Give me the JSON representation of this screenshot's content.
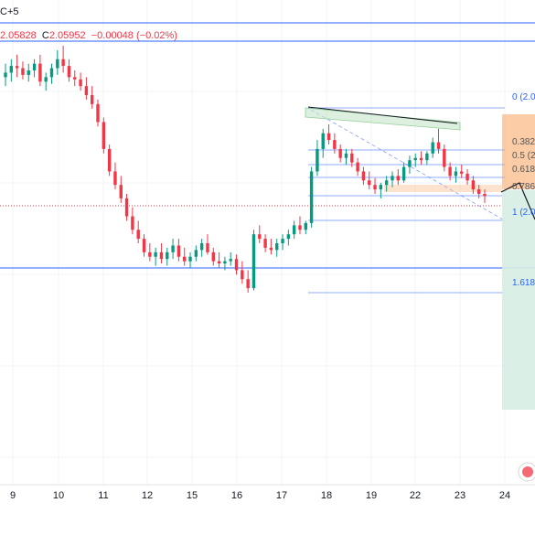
{
  "header": {
    "top_label": "C+5",
    "close_label": "C",
    "low_value": "2.05828",
    "close_value": "2.05952",
    "change_value": "−0.00048 (−0.02%)"
  },
  "fib_labels": [
    "0 (2.0",
    "0.382",
    "0.5 (2",
    "0.618",
    "0.786",
    "1 (2.0",
    "1.618"
  ],
  "chart_data": {
    "type": "candlestick",
    "xlabel": "",
    "ylabel": "",
    "x_ticks": [
      "9",
      "10",
      "11",
      "12",
      "15",
      "16",
      "17",
      "18",
      "19",
      "22",
      "23",
      "24"
    ],
    "colors": {
      "up": "#089981",
      "down": "#f23645",
      "fib_blue": "#2962ff",
      "target": "#f7a35c",
      "stop": "#d6ede3"
    },
    "fib_levels": [
      0,
      0.382,
      0.5,
      0.618,
      0.786,
      1,
      1.618
    ],
    "series": [
      {
        "values": [
          [
            2.105,
            2.108,
            2.103,
            2.106
          ],
          [
            2.106,
            2.109,
            2.104,
            2.1075
          ],
          [
            2.1075,
            2.11,
            2.105,
            2.107
          ],
          [
            2.107,
            2.1085,
            2.1045,
            2.1055
          ],
          [
            2.1055,
            2.108,
            2.104,
            2.1065
          ],
          [
            2.1065,
            2.109,
            2.105,
            2.108
          ],
          [
            2.108,
            2.11,
            2.103,
            2.104
          ],
          [
            2.104,
            2.106,
            2.102,
            2.105
          ],
          [
            2.105,
            2.108,
            2.1035,
            2.107
          ],
          [
            2.107,
            2.111,
            2.1055,
            2.109
          ],
          [
            2.109,
            2.112,
            2.106,
            2.1075
          ],
          [
            2.1075,
            2.109,
            2.104,
            2.105
          ],
          [
            2.105,
            2.1065,
            2.103,
            2.1045
          ],
          [
            2.1045,
            2.106,
            2.102,
            2.103
          ],
          [
            2.103,
            2.105,
            2.1,
            2.101
          ],
          [
            2.101,
            2.103,
            2.098,
            2.099
          ],
          [
            2.099,
            2.1,
            2.094,
            2.095
          ],
          [
            2.095,
            2.096,
            2.088,
            2.089
          ],
          [
            2.089,
            2.09,
            2.083,
            2.084
          ],
          [
            2.084,
            2.086,
            2.08,
            2.081
          ],
          [
            2.081,
            2.083,
            2.077,
            2.078
          ],
          [
            2.078,
            2.079,
            2.073,
            2.074
          ],
          [
            2.074,
            2.076,
            2.07,
            2.071
          ],
          [
            2.071,
            2.073,
            2.068,
            2.069
          ],
          [
            2.069,
            2.07,
            2.065,
            2.066
          ],
          [
            2.066,
            2.068,
            2.064,
            2.065
          ],
          [
            2.065,
            2.067,
            2.063,
            2.066
          ],
          [
            2.066,
            2.068,
            2.0635,
            2.0645
          ],
          [
            2.0645,
            2.067,
            2.063,
            2.066
          ],
          [
            2.066,
            2.069,
            2.0645,
            2.0675
          ],
          [
            2.0675,
            2.069,
            2.064,
            2.065
          ],
          [
            2.065,
            2.067,
            2.063,
            2.064
          ],
          [
            2.064,
            2.066,
            2.0625,
            2.065
          ],
          [
            2.065,
            2.0675,
            2.064,
            2.0665
          ],
          [
            2.0665,
            2.069,
            2.065,
            2.068
          ],
          [
            2.068,
            2.07,
            2.0655,
            2.066
          ],
          [
            2.066,
            2.067,
            2.063,
            2.064
          ],
          [
            2.064,
            2.066,
            2.0625,
            2.0635
          ],
          [
            2.0635,
            2.065,
            2.062,
            2.064
          ],
          [
            2.064,
            2.066,
            2.063,
            2.0645
          ],
          [
            2.0645,
            2.0655,
            2.061,
            2.062
          ],
          [
            2.062,
            2.064,
            2.059,
            2.06
          ],
          [
            2.06,
            2.062,
            2.057,
            2.058
          ],
          [
            2.058,
            2.071,
            2.0575,
            2.07
          ],
          [
            2.07,
            2.072,
            2.068,
            2.069
          ],
          [
            2.069,
            2.07,
            2.066,
            2.067
          ],
          [
            2.067,
            2.069,
            2.0655,
            2.0665
          ],
          [
            2.0665,
            2.069,
            2.065,
            2.068
          ],
          [
            2.068,
            2.07,
            2.0665,
            2.069
          ],
          [
            2.069,
            2.071,
            2.0675,
            2.07
          ],
          [
            2.07,
            2.073,
            2.069,
            2.072
          ],
          [
            2.072,
            2.074,
            2.07,
            2.071
          ],
          [
            2.071,
            2.073,
            2.07,
            2.0725
          ],
          [
            2.0725,
            2.085,
            2.0715,
            2.084
          ],
          [
            2.084,
            2.091,
            2.083,
            2.089
          ],
          [
            2.089,
            2.0935,
            2.087,
            2.0925
          ],
          [
            2.0925,
            2.0945,
            2.09,
            2.091
          ],
          [
            2.091,
            2.0925,
            2.088,
            2.089
          ],
          [
            2.089,
            2.09,
            2.086,
            2.087
          ],
          [
            2.087,
            2.089,
            2.0855,
            2.088
          ],
          [
            2.088,
            2.089,
            2.085,
            2.086
          ],
          [
            2.086,
            2.087,
            2.083,
            2.084
          ],
          [
            2.084,
            2.085,
            2.081,
            2.082
          ],
          [
            2.082,
            2.084,
            2.08,
            2.081
          ],
          [
            2.081,
            2.0825,
            2.079,
            2.08
          ],
          [
            2.08,
            2.0815,
            2.078,
            2.081
          ],
          [
            2.081,
            2.083,
            2.0795,
            2.082
          ],
          [
            2.082,
            2.084,
            2.0805,
            2.083
          ],
          [
            2.083,
            2.0845,
            2.081,
            2.082
          ],
          [
            2.082,
            2.086,
            2.0815,
            2.085
          ],
          [
            2.085,
            2.0875,
            2.0835,
            2.0865
          ],
          [
            2.0865,
            2.088,
            2.085,
            2.087
          ],
          [
            2.087,
            2.0885,
            2.0855,
            2.0865
          ],
          [
            2.0865,
            2.0885,
            2.0855,
            2.088
          ],
          [
            2.088,
            2.0915,
            2.087,
            2.0905
          ],
          [
            2.0905,
            2.0935,
            2.088,
            2.089
          ],
          [
            2.089,
            2.09,
            2.084,
            2.085
          ],
          [
            2.085,
            2.086,
            2.082,
            2.083
          ],
          [
            2.083,
            2.085,
            2.0815,
            2.084
          ],
          [
            2.084,
            2.0855,
            2.0825,
            2.0835
          ],
          [
            2.0835,
            2.0845,
            2.081,
            2.082
          ],
          [
            2.082,
            2.083,
            2.079,
            2.08
          ],
          [
            2.08,
            2.081,
            2.078,
            2.079
          ],
          [
            2.079,
            2.08,
            2.077,
            2.0785
          ]
        ]
      }
    ]
  }
}
